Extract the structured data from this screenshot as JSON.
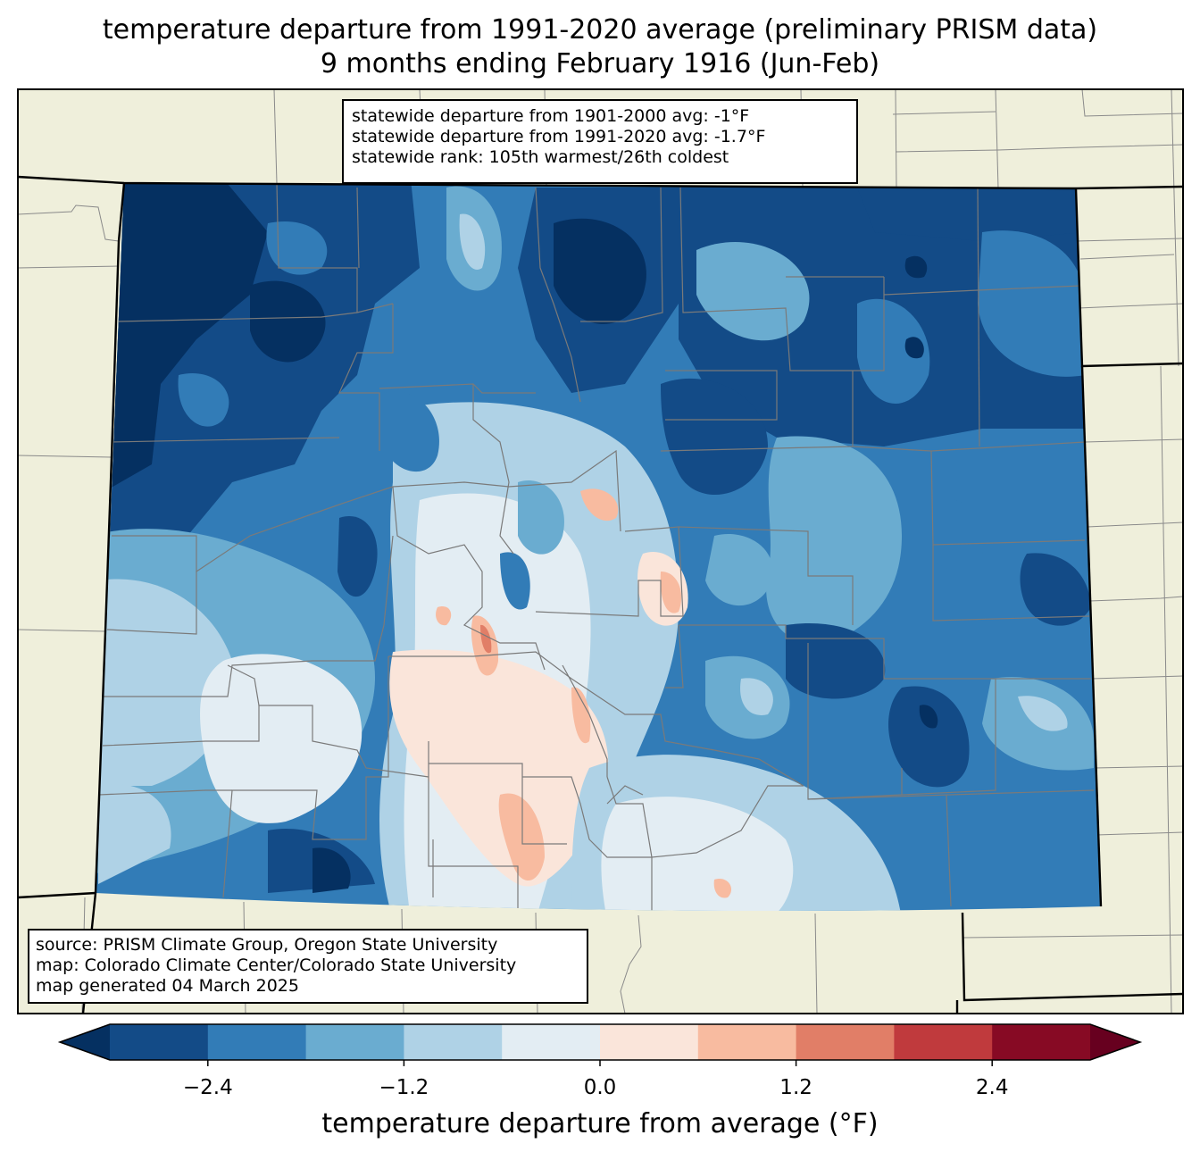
{
  "title": {
    "line1": "temperature departure from 1991-2020 average (preliminary PRISM data)",
    "line2": "9 months ending February 1916 (Jun-Feb)"
  },
  "stats": {
    "line1": "statewide departure from 1901-2000 avg: -1°F",
    "line2": "statewide departure from 1991-2020 avg: -1.7°F",
    "line3": "statewide rank: 105th warmest/26th coldest"
  },
  "credits": {
    "line1": "source: PRISM Climate Group, Oregon State University",
    "line2": "map: Colorado Climate Center/Colorado State University",
    "line3": "map generated 04 March 2025"
  },
  "colorbar": {
    "label": "temperature departure from average (°F)",
    "ticks": [
      "−2.4",
      "−1.2",
      "0.0",
      "1.2",
      "2.4"
    ],
    "tick_values": [
      -2.4,
      -1.2,
      0.0,
      1.2,
      2.4
    ],
    "bounds": [
      -3.0,
      -2.4,
      -1.8,
      -1.2,
      -0.6,
      0.0,
      0.6,
      1.2,
      1.8,
      2.4,
      3.0
    ],
    "colors": [
      "#053061",
      "#134b87",
      "#327cb7",
      "#6aacd0",
      "#afd2e6",
      "#e3edf3",
      "#fae5da",
      "#f8bba0",
      "#e17e67",
      "#c03a3d",
      "#870a24",
      "#67001f"
    ]
  },
  "map": {
    "land_color": "#efefdb",
    "state": "Colorado"
  }
}
